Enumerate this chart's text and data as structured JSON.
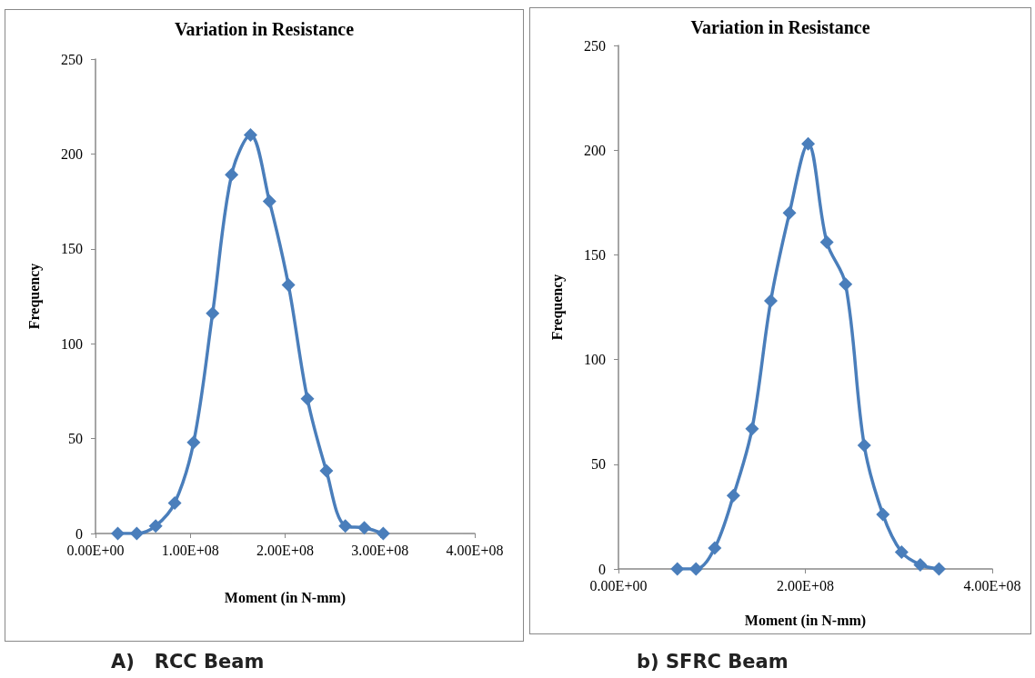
{
  "chart_data": [
    {
      "type": "line",
      "title": "Variation in Resistance",
      "xlabel": "Moment (in N-mm)",
      "ylabel": "Frequency",
      "annotations": [
        "A)   RCC Beam"
      ],
      "x": [
        23500000,
        43500000,
        63500000,
        83500000,
        103500000,
        123500000,
        143500000,
        163500000,
        183500000,
        203500000,
        223500000,
        243500000,
        263500000,
        283500000,
        303500000
      ],
      "series": [
        {
          "color": "#4a7ebb",
          "values": [
            0,
            0,
            4,
            16,
            48,
            116,
            189,
            210,
            175,
            131,
            71,
            33,
            4,
            3,
            0
          ]
        }
      ],
      "xlim": [
        0,
        400000000
      ],
      "xticks": [
        {
          "value": 0,
          "label": "0.00E+00"
        },
        {
          "value": 100000000,
          "label": "1.00E+08"
        },
        {
          "value": 200000000,
          "label": "2.00E+08"
        },
        {
          "value": 300000000,
          "label": "3.00E+08"
        },
        {
          "value": 400000000,
          "label": "4.00E+08"
        }
      ],
      "ylim": [
        0,
        250
      ],
      "yticks": [
        0,
        50,
        100,
        150,
        200,
        250
      ],
      "grid": false,
      "marker": "diamond",
      "line_style": "solid"
    },
    {
      "type": "line",
      "title": "Variation in Resistance",
      "xlabel": "Moment (in N-mm)",
      "ylabel": "Frequency",
      "annotations": [
        "b) SFRC Beam"
      ],
      "x": [
        63000000,
        83000000,
        103000000,
        123000000,
        143000000,
        163000000,
        183000000,
        203000000,
        223000000,
        243000000,
        263000000,
        283000000,
        303000000,
        323000000,
        343000000
      ],
      "series": [
        {
          "color": "#4a7ebb",
          "values": [
            0,
            0,
            10,
            35,
            67,
            128,
            170,
            203,
            156,
            136,
            59,
            26,
            8,
            2,
            0
          ]
        }
      ],
      "xlim": [
        0,
        400000000
      ],
      "xticks": [
        {
          "value": 0,
          "label": "0.00E+00"
        },
        {
          "value": 200000000,
          "label": "2.00E+08"
        },
        {
          "value": 400000000,
          "label": "4.00E+08"
        }
      ],
      "ylim": [
        0,
        250
      ],
      "yticks": [
        0,
        50,
        100,
        150,
        200,
        250
      ],
      "grid": false,
      "marker": "diamond",
      "line_style": "solid"
    }
  ]
}
